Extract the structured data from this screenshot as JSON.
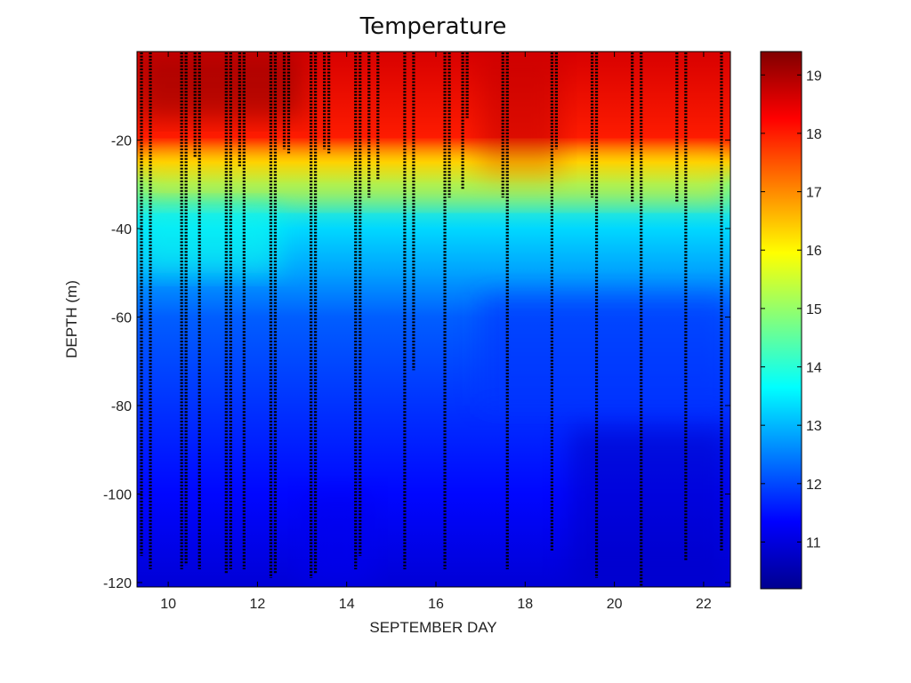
{
  "chart_data": {
    "type": "heatmap",
    "title": "Temperature",
    "xlabel": "SEPTEMBER DAY",
    "ylabel": "DEPTH (m)",
    "xlim": [
      9.3,
      22.6
    ],
    "ylim": [
      -121,
      0
    ],
    "x_ticks": [
      10,
      12,
      14,
      16,
      18,
      20,
      22
    ],
    "y_ticks": [
      -20,
      -40,
      -60,
      -80,
      -100,
      -120
    ],
    "colorbar": {
      "range": [
        10.2,
        19.4
      ],
      "ticks": [
        11,
        12,
        13,
        14,
        15,
        16,
        17,
        18,
        19
      ],
      "colormap": "jet"
    },
    "temperature_profile": [
      {
        "depth": 0,
        "temp": 18.6
      },
      {
        "depth": -20,
        "temp": 18.0
      },
      {
        "depth": -25,
        "temp": 16.5
      },
      {
        "depth": -30,
        "temp": 14.5
      },
      {
        "depth": -40,
        "temp": 13.3
      },
      {
        "depth": -50,
        "temp": 12.8
      },
      {
        "depth": -60,
        "temp": 12.2
      },
      {
        "depth": -80,
        "temp": 11.8
      },
      {
        "depth": -100,
        "temp": 11.4
      },
      {
        "depth": -120,
        "temp": 11.0
      }
    ],
    "sample_casts": [
      {
        "day": 9.4,
        "max_depth": -114
      },
      {
        "day": 9.6,
        "max_depth": -117
      },
      {
        "day": 10.3,
        "max_depth": -117
      },
      {
        "day": 10.4,
        "max_depth": -116
      },
      {
        "day": 10.6,
        "max_depth": -24
      },
      {
        "day": 10.7,
        "max_depth": -117
      },
      {
        "day": 11.3,
        "max_depth": -118
      },
      {
        "day": 11.4,
        "max_depth": -117
      },
      {
        "day": 11.6,
        "max_depth": -26
      },
      {
        "day": 11.7,
        "max_depth": -117
      },
      {
        "day": 12.3,
        "max_depth": -119
      },
      {
        "day": 12.4,
        "max_depth": -118
      },
      {
        "day": 12.6,
        "max_depth": -22
      },
      {
        "day": 12.7,
        "max_depth": -23
      },
      {
        "day": 13.2,
        "max_depth": -119
      },
      {
        "day": 13.3,
        "max_depth": -118
      },
      {
        "day": 13.5,
        "max_depth": -22
      },
      {
        "day": 13.6,
        "max_depth": -23
      },
      {
        "day": 14.2,
        "max_depth": -117
      },
      {
        "day": 14.3,
        "max_depth": -114
      },
      {
        "day": 14.5,
        "max_depth": -33
      },
      {
        "day": 14.7,
        "max_depth": -29
      },
      {
        "day": 15.3,
        "max_depth": -117
      },
      {
        "day": 15.5,
        "max_depth": -72
      },
      {
        "day": 16.2,
        "max_depth": -117
      },
      {
        "day": 16.3,
        "max_depth": -33
      },
      {
        "day": 16.6,
        "max_depth": -31
      },
      {
        "day": 16.7,
        "max_depth": -15
      },
      {
        "day": 17.5,
        "max_depth": -33
      },
      {
        "day": 17.6,
        "max_depth": -117
      },
      {
        "day": 18.6,
        "max_depth": -113
      },
      {
        "day": 18.7,
        "max_depth": -22
      },
      {
        "day": 19.5,
        "max_depth": -33
      },
      {
        "day": 19.6,
        "max_depth": -119
      },
      {
        "day": 20.4,
        "max_depth": -34
      },
      {
        "day": 20.6,
        "max_depth": -121
      },
      {
        "day": 21.4,
        "max_depth": -34
      },
      {
        "day": 21.6,
        "max_depth": -115
      },
      {
        "day": 22.4,
        "max_depth": -113
      }
    ]
  }
}
